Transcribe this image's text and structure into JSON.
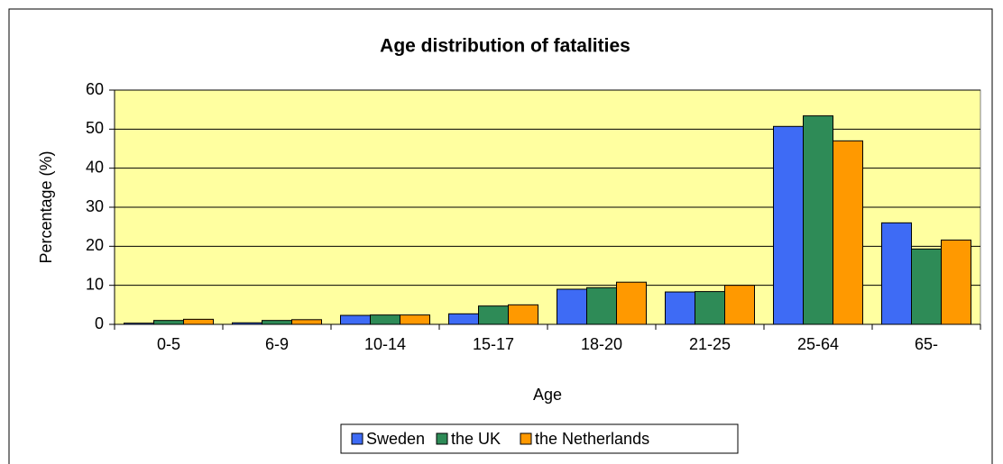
{
  "chart_data": {
    "type": "bar",
    "title": "Age distribution of fatalities",
    "x_label": "Age",
    "y_label": "Percentage (%)",
    "categories": [
      "0-5",
      "6-9",
      "10-14",
      "15-17",
      "18-20",
      "21-25",
      "25-64",
      "65-"
    ],
    "series": [
      {
        "name": "Sweden",
        "color": "#3e6bf5",
        "values": [
          0.3,
          0.4,
          2.3,
          2.7,
          9,
          8.3,
          50.7,
          26
        ]
      },
      {
        "name": "the UK",
        "color": "#2e8b57",
        "values": [
          1,
          1,
          2.4,
          4.7,
          9.4,
          8.4,
          53.4,
          19.3
        ]
      },
      {
        "name": "the Netherlands",
        "color": "#ff9900",
        "values": [
          1.3,
          1.2,
          2.4,
          5,
          10.8,
          10,
          47,
          21.6
        ]
      }
    ],
    "ylim": [
      0,
      60
    ],
    "yticks": [
      0,
      10,
      20,
      30,
      40,
      50,
      60
    ],
    "grid": true,
    "legend": "bottom"
  }
}
